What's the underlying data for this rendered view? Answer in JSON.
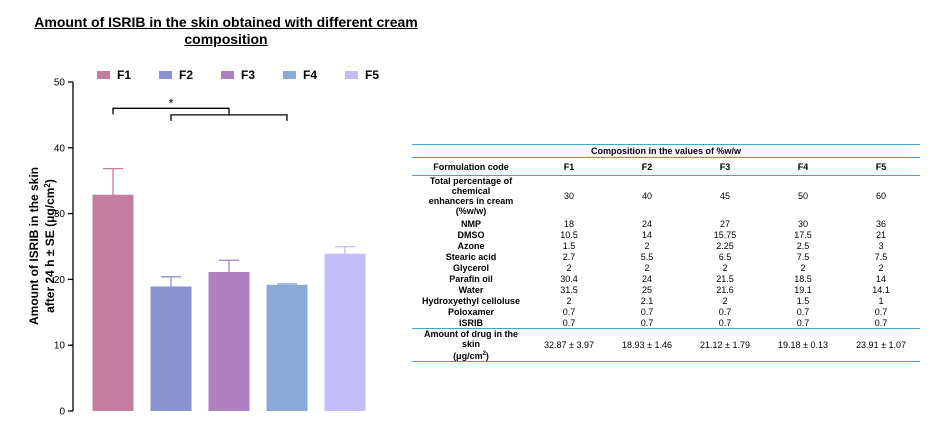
{
  "chart_data": {
    "type": "bar",
    "title": "Amount of ISRIB in the skin obtained with different cream composition",
    "ylabel": "Amount of ISRIB in the skin after 24 h ± SE (μg/cm²)",
    "ylabel_line1": "Amount of ISRIB in the skin",
    "ylabel_line2": "after 24 h ± SE (μg/cm",
    "ylabel_sup": "2",
    "ylabel_close": ")",
    "ylim": [
      0,
      50
    ],
    "yticks": [
      "0",
      "10",
      "20",
      "30",
      "40",
      "50"
    ],
    "categories": [
      "F1",
      "F2",
      "F3",
      "F4",
      "F5"
    ],
    "values": [
      32.87,
      18.93,
      21.12,
      19.18,
      23.91
    ],
    "errors": [
      3.97,
      1.46,
      1.79,
      0.13,
      1.07
    ],
    "colors": [
      "#c27e9e",
      "#8a93cf",
      "#b07fc0",
      "#8aaad6",
      "#c3bef8"
    ],
    "legend_position": "top",
    "significance": {
      "label": "*",
      "bracket_upper": {
        "from": "F1",
        "to": "F3",
        "level": 46
      },
      "bracket_lower": {
        "from": "F2",
        "to": "F4",
        "level": 45
      }
    }
  },
  "table": {
    "caption": "Composition in the values of %w/w",
    "header": [
      "Formulation code",
      "F1",
      "F2",
      "F3",
      "F4",
      "F5"
    ],
    "enhancers_row": {
      "label_line1": "Total percentage of chemical",
      "label_line2": "enhancers in cream (%w/w)",
      "values": [
        "30",
        "40",
        "45",
        "50",
        "60"
      ]
    },
    "rows": [
      {
        "label": "NMP",
        "values": [
          "18",
          "24",
          "27",
          "30",
          "36"
        ]
      },
      {
        "label": "DMSO",
        "values": [
          "10.5",
          "14",
          "15.75",
          "17.5",
          "21"
        ]
      },
      {
        "label": "Azone",
        "values": [
          "1.5",
          "2",
          "2.25",
          "2.5",
          "3"
        ]
      },
      {
        "label": "Stearic acid",
        "values": [
          "2.7",
          "5.5",
          "6.5",
          "7.5",
          "7.5"
        ]
      },
      {
        "label": "Glycerol",
        "values": [
          "2",
          "2",
          "2",
          "2",
          "2"
        ]
      },
      {
        "label": "Parafin oil",
        "values": [
          "30.4",
          "24",
          "21.5",
          "18.5",
          "14"
        ]
      },
      {
        "label": "Water",
        "values": [
          "31.5",
          "25",
          "21.6",
          "19.1",
          "14.1"
        ]
      },
      {
        "label": "Hydroxyethyl celloluse",
        "values": [
          "2",
          "2.1",
          "2",
          "1.5",
          "1"
        ]
      },
      {
        "label": "Poloxamer",
        "values": [
          "0.7",
          "0.7",
          "0.7",
          "0.7",
          "0.7"
        ]
      },
      {
        "label": "ISRIB",
        "values": [
          "0.7",
          "0.7",
          "0.7",
          "0.7",
          "0.7"
        ]
      }
    ],
    "amount_row": {
      "label_line1": "Amount of drug in the skin",
      "label_line2": "(μg/cm",
      "label_sup": "2",
      "label_close": ")",
      "values": [
        "32.87 ± 3.97",
        "18.93 ± 1.46",
        "21.12 ± 1.79",
        "19.18 ± 0.13",
        "23.91 ± 1.07"
      ]
    }
  }
}
